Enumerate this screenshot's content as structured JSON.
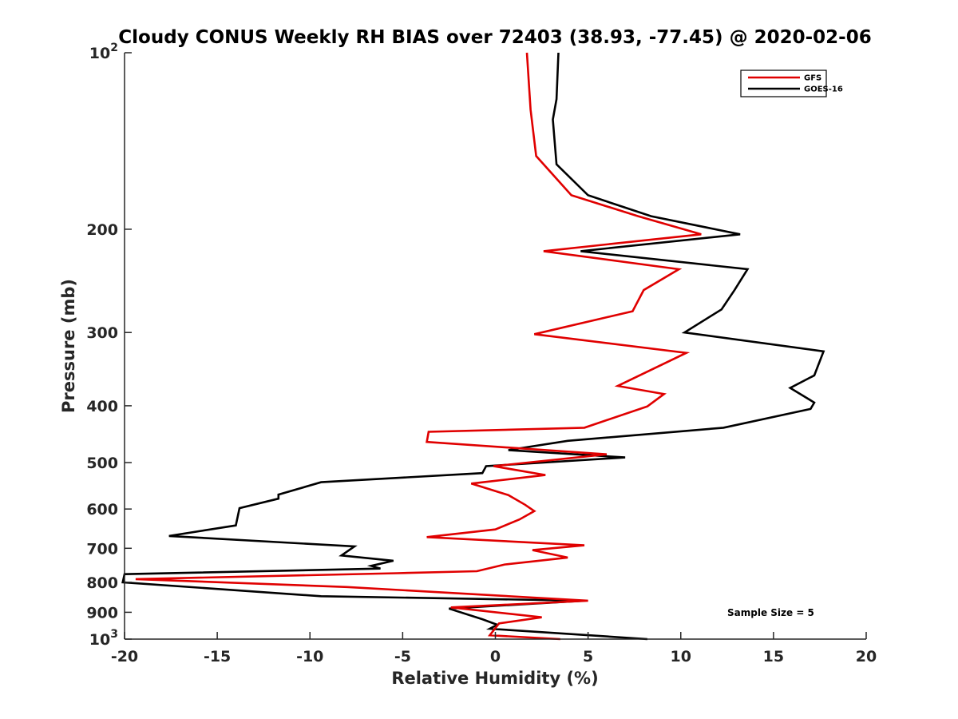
{
  "chart_data": {
    "type": "line",
    "title": "Cloudy CONUS Weekly RH BIAS over 72403 (38.93, -77.45) @ 2020-02-06",
    "xlabel": "Relative Humidity (%)",
    "ylabel": "Pressure (mb)",
    "xlim": [
      -20,
      20
    ],
    "ylim": [
      100,
      1000
    ],
    "y_scale": "log",
    "y_reversed": true,
    "x_ticks": [
      -20,
      -15,
      -10,
      -5,
      0,
      5,
      10,
      15,
      20
    ],
    "x_tick_labels": [
      "-20",
      "-15",
      "-10",
      "-5",
      "0",
      "5",
      "10",
      "15",
      "20"
    ],
    "y_ticks": [
      100,
      200,
      300,
      400,
      500,
      600,
      700,
      800,
      900,
      1000
    ],
    "y_tick_labels": [
      {
        "base": "10",
        "exp": "2"
      },
      {
        "base": "200",
        "exp": ""
      },
      {
        "base": "300",
        "exp": ""
      },
      {
        "base": "400",
        "exp": ""
      },
      {
        "base": "500",
        "exp": ""
      },
      {
        "base": "600",
        "exp": ""
      },
      {
        "base": "700",
        "exp": ""
      },
      {
        "base": "800",
        "exp": ""
      },
      {
        "base": "900",
        "exp": ""
      },
      {
        "base": "10",
        "exp": "3"
      }
    ],
    "grid": false,
    "legend_position": "top-right",
    "series": [
      {
        "name": "GFS",
        "color": "#e00000",
        "points": [
          [
            1.7,
            100
          ],
          [
            1.9,
            125
          ],
          [
            2.2,
            150
          ],
          [
            4.1,
            175
          ],
          [
            7.7,
            190
          ],
          [
            11.1,
            204
          ],
          [
            2.6,
            218
          ],
          [
            9.9,
            234
          ],
          [
            8.0,
            254
          ],
          [
            7.4,
            276
          ],
          [
            2.1,
            302
          ],
          [
            10.3,
            325
          ],
          [
            6.6,
            370
          ],
          [
            9.1,
            382
          ],
          [
            8.2,
            401
          ],
          [
            4.8,
            436
          ],
          [
            -3.6,
            443
          ],
          [
            -3.7,
            461
          ],
          [
            6.0,
            484
          ],
          [
            -0.1,
            507
          ],
          [
            2.7,
            525
          ],
          [
            -1.3,
            543
          ],
          [
            0.7,
            568
          ],
          [
            1.6,
            590
          ],
          [
            2.1,
            605
          ],
          [
            1.3,
            625
          ],
          [
            0.0,
            650
          ],
          [
            -3.7,
            670
          ],
          [
            4.8,
            692
          ],
          [
            2.0,
            705
          ],
          [
            3.9,
            726
          ],
          [
            0.5,
            746
          ],
          [
            -1.0,
            766
          ],
          [
            -5.3,
            772
          ],
          [
            -19.4,
            790
          ],
          [
            -8.0,
            815
          ],
          [
            5.0,
            860
          ],
          [
            -2.4,
            883
          ],
          [
            2.5,
            918
          ],
          [
            0.2,
            940
          ],
          [
            -0.3,
            985
          ],
          [
            3.5,
            1000
          ]
        ]
      },
      {
        "name": "GOES-16",
        "color": "#000000",
        "points": [
          [
            3.4,
            100
          ],
          [
            3.3,
            120
          ],
          [
            3.1,
            130
          ],
          [
            3.3,
            155
          ],
          [
            5.0,
            175
          ],
          [
            8.4,
            190
          ],
          [
            13.2,
            204
          ],
          [
            4.6,
            218
          ],
          [
            13.6,
            234
          ],
          [
            12.9,
            254
          ],
          [
            12.2,
            274
          ],
          [
            10.2,
            300
          ],
          [
            17.7,
            323
          ],
          [
            17.2,
            355
          ],
          [
            15.9,
            373
          ],
          [
            17.2,
            395
          ],
          [
            17.0,
            405
          ],
          [
            12.3,
            436
          ],
          [
            3.9,
            459
          ],
          [
            0.7,
            476
          ],
          [
            7.0,
            490
          ],
          [
            -0.5,
            507
          ],
          [
            -0.7,
            521
          ],
          [
            -9.4,
            540
          ],
          [
            -11.7,
            567
          ],
          [
            -11.7,
            576
          ],
          [
            -13.8,
            598
          ],
          [
            -14.0,
            640
          ],
          [
            -17.6,
            667
          ],
          [
            -7.6,
            695
          ],
          [
            -8.3,
            720
          ],
          [
            -5.5,
            735
          ],
          [
            -6.7,
            750
          ],
          [
            -6.2,
            758
          ],
          [
            -20.0,
            775
          ],
          [
            -20.1,
            800
          ],
          [
            -9.4,
            845
          ],
          [
            4.8,
            860
          ],
          [
            -2.5,
            887
          ],
          [
            -0.7,
            925
          ],
          [
            0.1,
            945
          ],
          [
            -0.3,
            960
          ],
          [
            8.2,
            1000
          ]
        ]
      }
    ],
    "annotation": "Sample Size = 5"
  }
}
